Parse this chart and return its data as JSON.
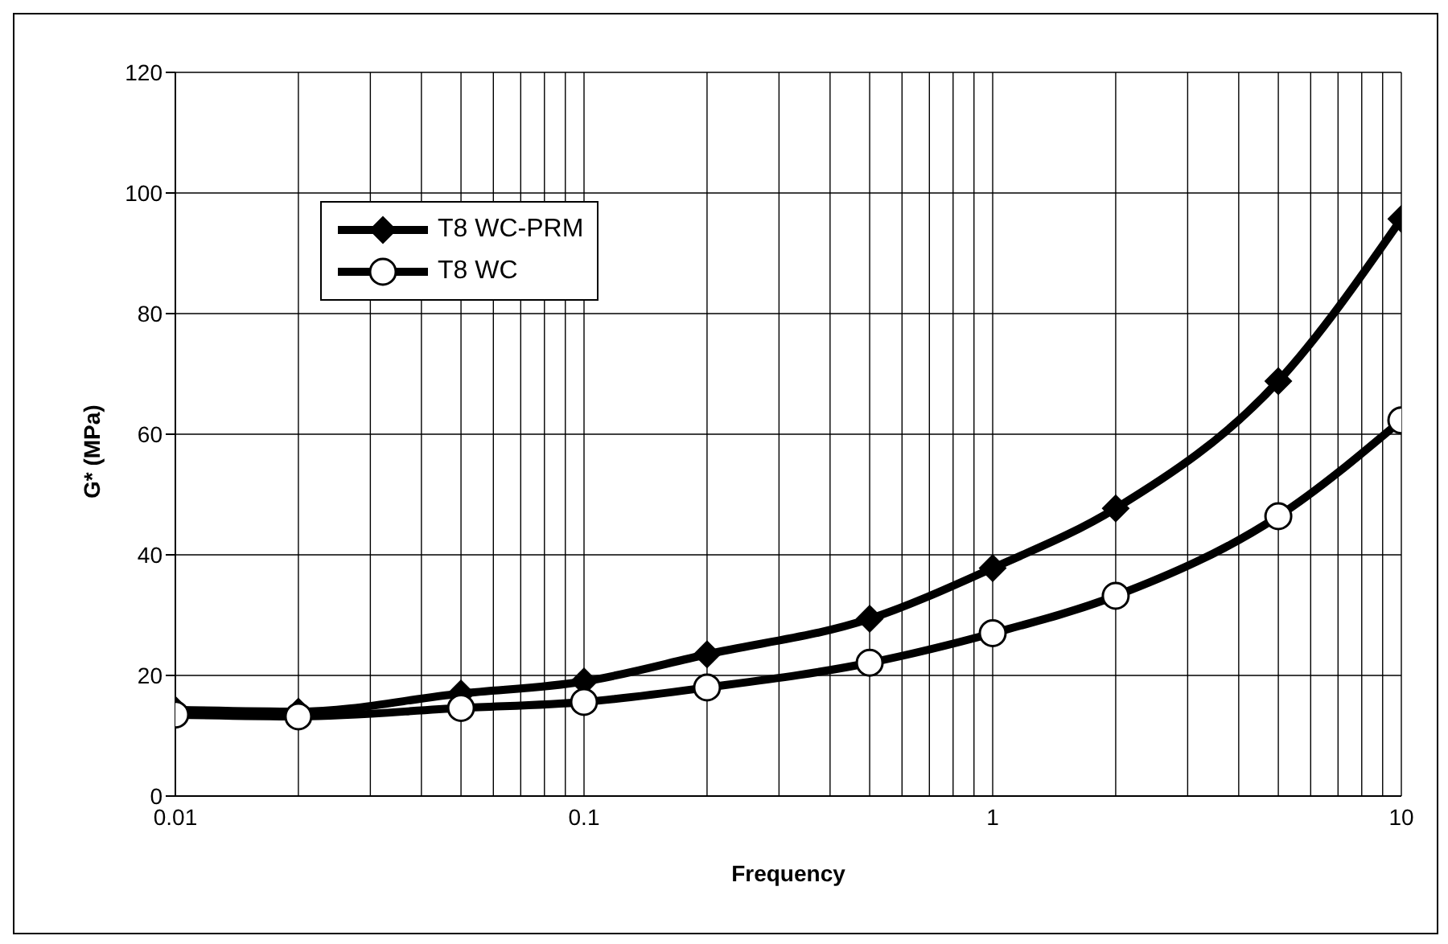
{
  "chart_data": {
    "type": "line",
    "xlabel": "Frequency",
    "ylabel": "G* (MPa)",
    "x": [
      0.01,
      0.02,
      0.05,
      0.1,
      0.2,
      0.5,
      1,
      2,
      5,
      10
    ],
    "series": [
      {
        "name": "T8 WC-PRM",
        "color": "#000000",
        "marker": "diamond",
        "values": [
          14.3,
          14,
          17,
          19,
          23.5,
          29.4,
          37.8,
          47.7,
          68.8,
          95.7
        ]
      },
      {
        "name": "T8 WC",
        "color": "#000000",
        "marker": "circle",
        "values": [
          13.5,
          13.2,
          14.6,
          15.6,
          18,
          22.1,
          27,
          33.2,
          46.4,
          62.3
        ]
      }
    ],
    "log": "x",
    "xlim": [
      0.01,
      10
    ],
    "xticks": [
      0.01,
      {
        "value": 0.02,
        "label": null
      },
      {
        "value": 0.03,
        "label": null
      },
      {
        "value": 0.04,
        "label": null
      },
      {
        "value": 0.05,
        "label": null
      },
      {
        "value": 0.06,
        "label": null
      },
      {
        "value": 0.07,
        "label": null
      },
      {
        "value": 0.08,
        "label": null
      },
      {
        "value": 0.09,
        "label": null
      },
      0.1,
      {
        "value": 0.2,
        "label": null
      },
      {
        "value": 0.3,
        "label": null
      },
      {
        "value": 0.4,
        "label": null
      },
      {
        "value": 0.5,
        "label": null
      },
      {
        "value": 0.6,
        "label": null
      },
      {
        "value": 0.7,
        "label": null
      },
      {
        "value": 0.8,
        "label": null
      },
      {
        "value": 0.9,
        "label": null
      },
      1,
      {
        "value": 2,
        "label": null
      },
      {
        "value": 3,
        "label": null
      },
      {
        "value": 4,
        "label": null
      },
      {
        "value": 5,
        "label": null
      },
      {
        "value": 6,
        "label": null
      },
      {
        "value": 7,
        "label": null
      },
      {
        "value": 8,
        "label": null
      },
      {
        "value": 9,
        "label": null
      },
      10
    ],
    "ylim": [
      0,
      120
    ],
    "yticks": [
      0,
      20,
      40,
      60,
      80,
      100,
      120
    ],
    "grid": true,
    "legend": "top left",
    "line_style": "solid"
  }
}
